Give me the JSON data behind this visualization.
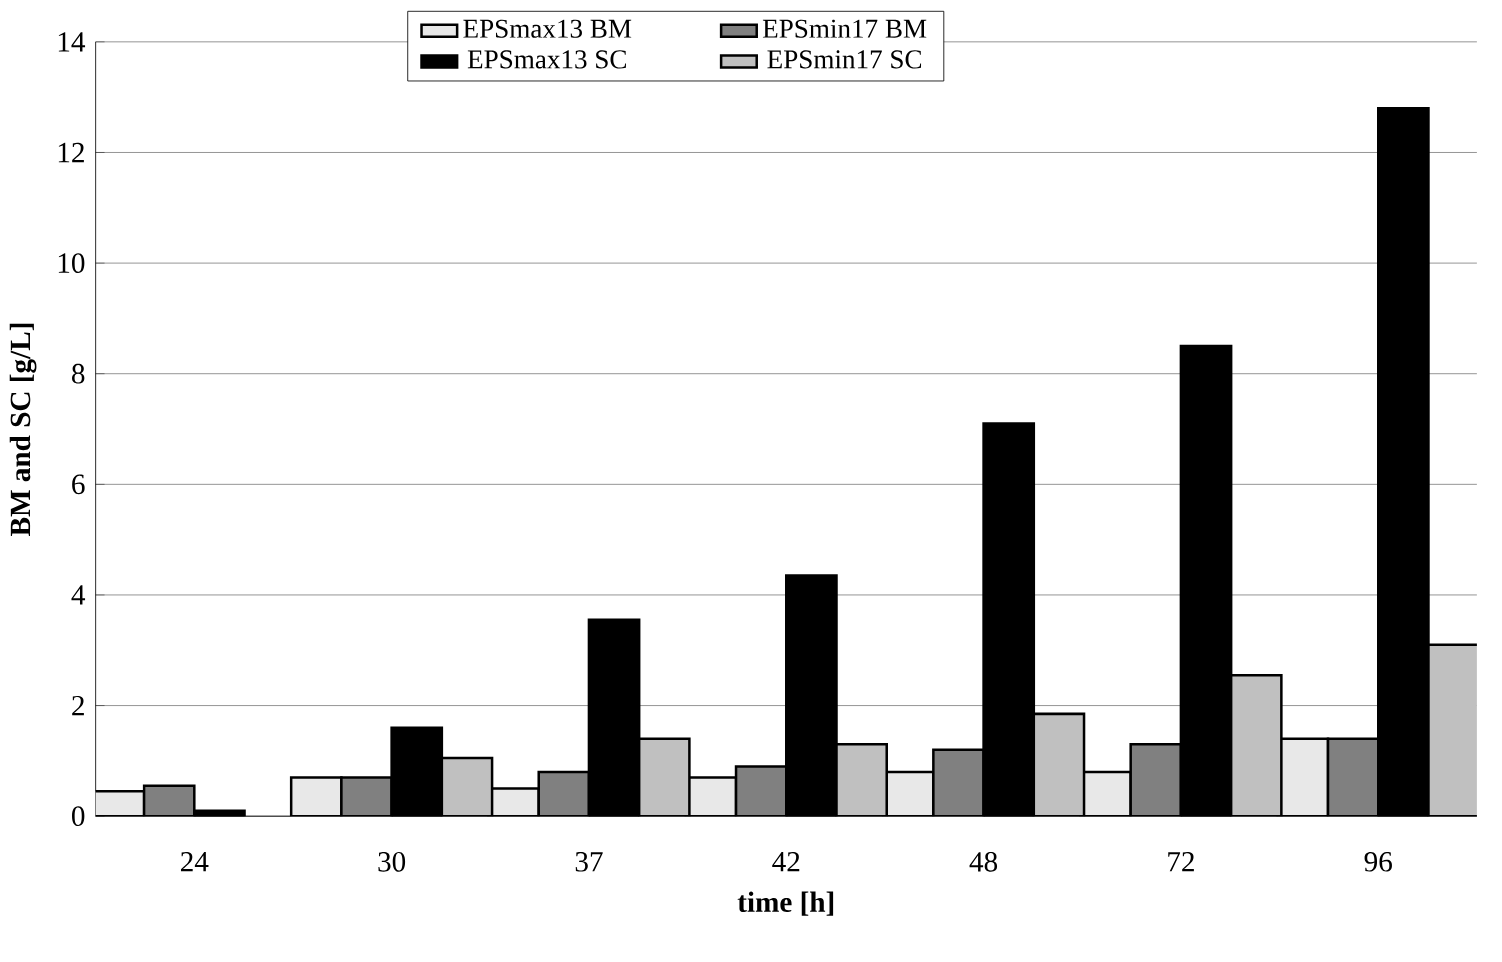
{
  "chart_data": {
    "type": "bar",
    "xlabel": "time [h]",
    "ylabel": "BM and SC [g/L]",
    "categories": [
      "24",
      "30",
      "37",
      "42",
      "48",
      "72",
      "96"
    ],
    "series": [
      {
        "name": "EPSmax13  BM",
        "color": "#e8e8e8",
        "values": [
          0.45,
          0.7,
          0.5,
          0.7,
          0.8,
          0.8,
          1.4
        ]
      },
      {
        "name": "EPSmin17 BM",
        "color": "#808080",
        "values": [
          0.55,
          0.7,
          0.8,
          0.9,
          1.2,
          1.3,
          1.4
        ]
      },
      {
        "name": "EPSmax13 SC",
        "color": "#000000",
        "values": [
          0.1,
          1.6,
          3.55,
          4.35,
          7.1,
          8.5,
          12.8
        ]
      },
      {
        "name": "EPSmin17 SC",
        "color": "#c0c0c0",
        "values": [
          null,
          1.05,
          1.4,
          1.3,
          1.85,
          2.55,
          3.1
        ]
      }
    ],
    "ylim": [
      0,
      14
    ],
    "yticks": [
      0,
      2,
      4,
      6,
      8,
      10,
      12,
      14
    ],
    "grid": "y",
    "legend": "top"
  }
}
